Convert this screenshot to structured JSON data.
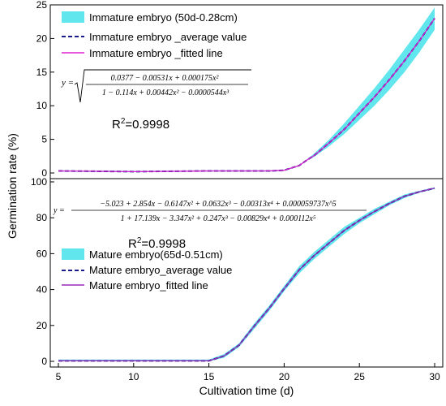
{
  "chart_data": [
    {
      "type": "line",
      "panel": "top",
      "xlabel": "Cultivation time (d)",
      "ylabel": "Germination rate (%)",
      "xlim": [
        5,
        30
      ],
      "ylim": [
        0,
        25
      ],
      "yticks": [
        0,
        5,
        10,
        15,
        20,
        25
      ],
      "legend_position": "top-left",
      "legend": [
        "Immature embryo (50d-0.28cm)",
        "Immature embryo _average value",
        "Immature embryo _fitted line"
      ],
      "equation": {
        "lhs": "y =",
        "numerator": "0.0377 − 0.00531x + 0.000175x²",
        "denominator": "1 − 0.114x + 0.00442x² − 0.0000544x³"
      },
      "r2_label": "R",
      "r2_sup": "2",
      "r2_value": "=0.9998",
      "x": [
        5,
        10,
        15,
        19,
        20,
        21,
        21.5,
        22,
        23,
        24,
        25,
        26,
        27,
        28,
        29,
        30
      ],
      "series": [
        {
          "name": "Immature embryo (50d-0.28cm)",
          "kind": "band",
          "lower": [
            0.2,
            0.1,
            0.2,
            0.2,
            0.3,
            1.0,
            1.8,
            2.4,
            4.0,
            5.8,
            7.9,
            10.0,
            12.4,
            15.0,
            18.0,
            21.3
          ],
          "upper": [
            0.4,
            0.3,
            0.4,
            0.4,
            0.5,
            1.2,
            2.0,
            2.9,
            5.0,
            7.4,
            10.0,
            12.6,
            15.4,
            18.4,
            21.4,
            24.6
          ]
        },
        {
          "name": "Immature embryo _average value",
          "kind": "dashed",
          "values": [
            0.3,
            0.2,
            0.3,
            0.3,
            0.4,
            1.1,
            1.9,
            2.6,
            4.5,
            6.5,
            8.9,
            11.3,
            13.9,
            16.7,
            19.7,
            23.0
          ]
        },
        {
          "name": "Immature embryo _fitted line",
          "kind": "solid",
          "values": [
            0.3,
            0.2,
            0.3,
            0.3,
            0.4,
            1.1,
            1.9,
            2.6,
            4.5,
            6.5,
            8.9,
            11.3,
            13.9,
            16.7,
            19.7,
            23.0
          ]
        }
      ]
    },
    {
      "type": "line",
      "panel": "bottom",
      "xlabel": "Cultivation time (d)",
      "ylabel": "Germination rate (%)",
      "xlim": [
        5,
        30
      ],
      "ylim": [
        0,
        100
      ],
      "xticks": [
        5,
        10,
        15,
        20,
        25,
        30
      ],
      "yticks": [
        0,
        20,
        40,
        60,
        80,
        100
      ],
      "legend_position": "center-left",
      "legend": [
        "Mature embryo(65d-0.51cm)",
        "Mature embryo_average value",
        "Mature embryo_fitted line"
      ],
      "equation": {
        "lhs": "y =",
        "numerator": "−5.023 + 2.854x − 0.6147x² + 0.0632x³ − 0.00313x⁴ + 0.000059737x^5",
        "denominator": "1 + 17.139x − 3.347x² + 0.247x³ − 0.00829x⁴ + 0.000112x⁵"
      },
      "r2_label": "R",
      "r2_sup": "2",
      "r2_value": "=0.9998",
      "x": [
        5,
        10,
        13,
        15,
        16,
        17,
        18,
        19,
        20,
        21,
        22,
        23,
        24,
        25,
        26,
        27,
        28,
        29,
        30
      ],
      "series": [
        {
          "name": "Mature embryo(65d-0.51cm)",
          "kind": "band",
          "lower": [
            0,
            0,
            0,
            0,
            2,
            8,
            18,
            28,
            39,
            49,
            57,
            64,
            71,
            77,
            82,
            87,
            91,
            94,
            96
          ],
          "upper": [
            1,
            1,
            1,
            1,
            4,
            10,
            21,
            31,
            42,
            53,
            61,
            68,
            75,
            80,
            85,
            89,
            93,
            95,
            97
          ]
        },
        {
          "name": "Mature embryo_average value",
          "kind": "dashed",
          "values": [
            0.3,
            0.3,
            0.3,
            0.3,
            3,
            9,
            19.5,
            29.5,
            40.5,
            51,
            59,
            66,
            73,
            78.5,
            83.5,
            88,
            92,
            94.5,
            96.5
          ]
        },
        {
          "name": "Mature embryo_fitted line",
          "kind": "solid",
          "values": [
            0.3,
            0.3,
            0.3,
            0.3,
            3,
            9,
            19.5,
            29.5,
            40.5,
            51,
            59,
            66,
            73,
            78.5,
            83.5,
            88,
            92,
            94.5,
            96.5
          ]
        }
      ]
    }
  ],
  "colors": {
    "band": "#62e6ee",
    "average_line": "#1a1a8c",
    "fitted_top": "#e020d0",
    "fitted_bottom": "#9a2ab8",
    "axis": "#000000"
  }
}
